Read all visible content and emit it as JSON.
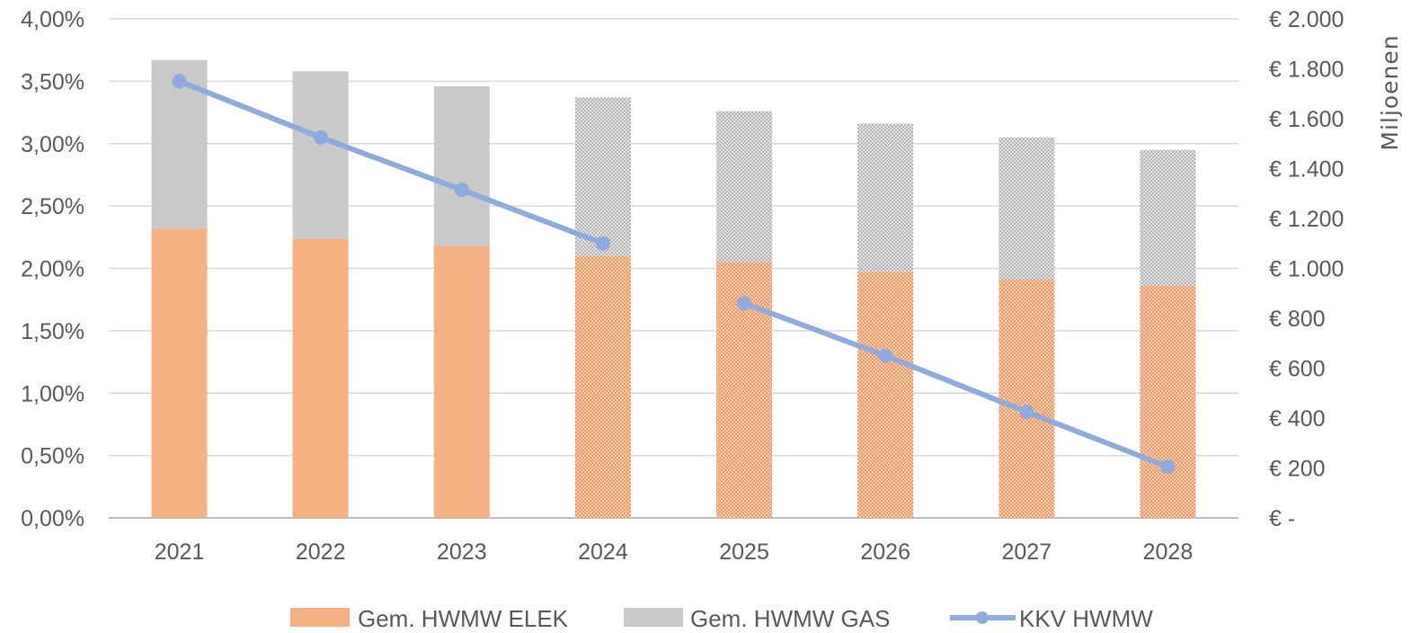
{
  "chart_data": {
    "type": "bar",
    "categories": [
      "2021",
      "2022",
      "2023",
      "2024",
      "2025",
      "2026",
      "2027",
      "2028"
    ],
    "series": [
      {
        "name": "Gem. HWMW ELEK",
        "kind": "stacked-bar",
        "axis": "right",
        "color": "#F4B183",
        "values": [
          1160,
          1120,
          1090,
          1050,
          1025,
          985,
          955,
          930
        ]
      },
      {
        "name": "Gem. HWMW GAS",
        "kind": "stacked-bar",
        "axis": "right",
        "color": "#C9C9C9",
        "values": [
          675,
          670,
          640,
          635,
          605,
          595,
          570,
          545
        ]
      },
      {
        "name": "KKV HWMW",
        "kind": "line",
        "axis": "left",
        "color": "#8FAADC",
        "values": [
          3.5,
          3.05,
          2.63,
          2.2,
          1.72,
          1.3,
          0.85,
          0.41
        ]
      }
    ],
    "pattern_from_category": "2024",
    "left_axis": {
      "ylim": [
        0,
        4
      ],
      "tick_labels": [
        "0,00%",
        "0,50%",
        "1,00%",
        "1,50%",
        "2,00%",
        "2,50%",
        "3,00%",
        "3,50%",
        "4,00%"
      ]
    },
    "right_axis": {
      "ylim": [
        0,
        2000
      ],
      "label": "Miljoenen",
      "tick_labels": [
        "€ -",
        "€ 200",
        "€ 400",
        "€ 600",
        "€ 800",
        "€ 1.000",
        "€ 1.200",
        "€ 1.400",
        "€ 1.600",
        "€ 1.800",
        "€ 2.000"
      ]
    },
    "grid": true,
    "legend_position": "bottom",
    "legend": [
      "Gem. HWMW ELEK",
      "Gem. HWMW GAS",
      "KKV HWMW"
    ]
  }
}
